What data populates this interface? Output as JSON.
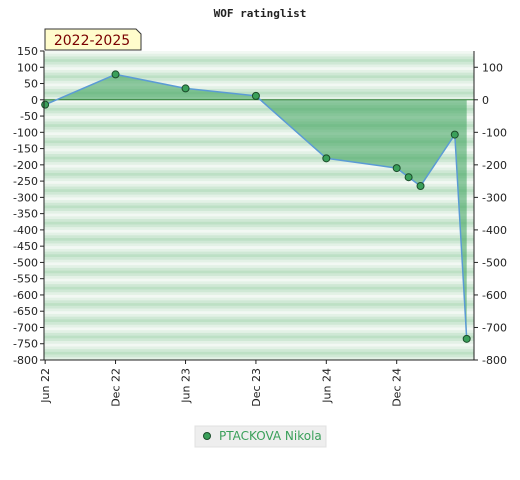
{
  "chart_data": {
    "type": "area",
    "title": "WOF ratinglist",
    "period_label": "2022-2025",
    "x_ticks": [
      "Jun 22",
      "Dec 22",
      "Jun 23",
      "Dec 23",
      "Jun 24",
      "Dec 24"
    ],
    "y_left_ticks": [
      150,
      100,
      50,
      0,
      -50,
      -100,
      -150,
      -200,
      -250,
      -300,
      -350,
      -400,
      -450,
      -500,
      -550,
      -600,
      -650,
      -700,
      -750,
      -800
    ],
    "y_right_ticks": [
      100,
      0,
      -100,
      -200,
      -300,
      -400,
      -500,
      -600,
      -700,
      -800
    ],
    "ylim": [
      -800,
      150
    ],
    "xlim": [
      "2022-05-29",
      "2025-06-20"
    ],
    "grid": true,
    "legend_position": "bottom-center",
    "series": [
      {
        "name": "PTACKOVA Nikola",
        "color": "#3aa05a",
        "line_color": "#5b9bd5",
        "points": [
          {
            "date": "2022-06-01",
            "value": -15
          },
          {
            "date": "2022-12-01",
            "value": 78
          },
          {
            "date": "2023-06-01",
            "value": 35
          },
          {
            "date": "2023-12-01",
            "value": 12
          },
          {
            "date": "2024-06-01",
            "value": -180
          },
          {
            "date": "2024-12-01",
            "value": -210
          },
          {
            "date": "2025-01-01",
            "value": -238
          },
          {
            "date": "2025-02-01",
            "value": -265
          },
          {
            "date": "2025-05-01",
            "value": -107
          },
          {
            "date": "2025-06-01",
            "value": -735
          }
        ]
      }
    ]
  }
}
